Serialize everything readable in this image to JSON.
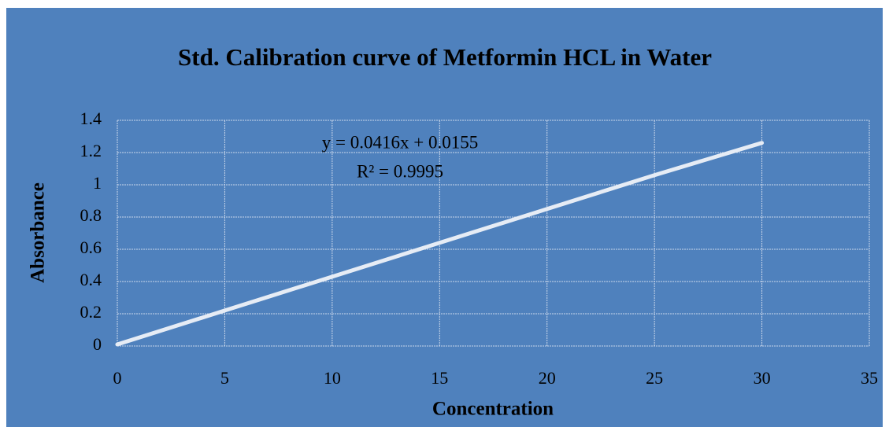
{
  "chart_data": {
    "type": "line",
    "title": "Std. Calibration curve of Metformin HCL in Water",
    "x_label": "Concentration",
    "y_label": "Absorbance",
    "annotations": [
      "y = 0.0416x + 0.0155",
      "R² = 0.9995"
    ],
    "x": [
      0,
      5,
      10,
      15,
      20,
      25,
      30
    ],
    "series": [
      {
        "name": "Absorbance",
        "color": "#e6ecf5",
        "values": [
          0.01,
          0.22,
          0.43,
          0.64,
          0.85,
          1.06,
          1.26
        ]
      }
    ],
    "xlim": [
      0,
      35
    ],
    "xticks": [
      0,
      5,
      10,
      15,
      20,
      25,
      30,
      35
    ],
    "ylim": [
      0,
      1.4
    ],
    "yticks": [
      0,
      0.2,
      0.4,
      0.6,
      0.8,
      1,
      1.2,
      1.4
    ],
    "grid": true
  }
}
